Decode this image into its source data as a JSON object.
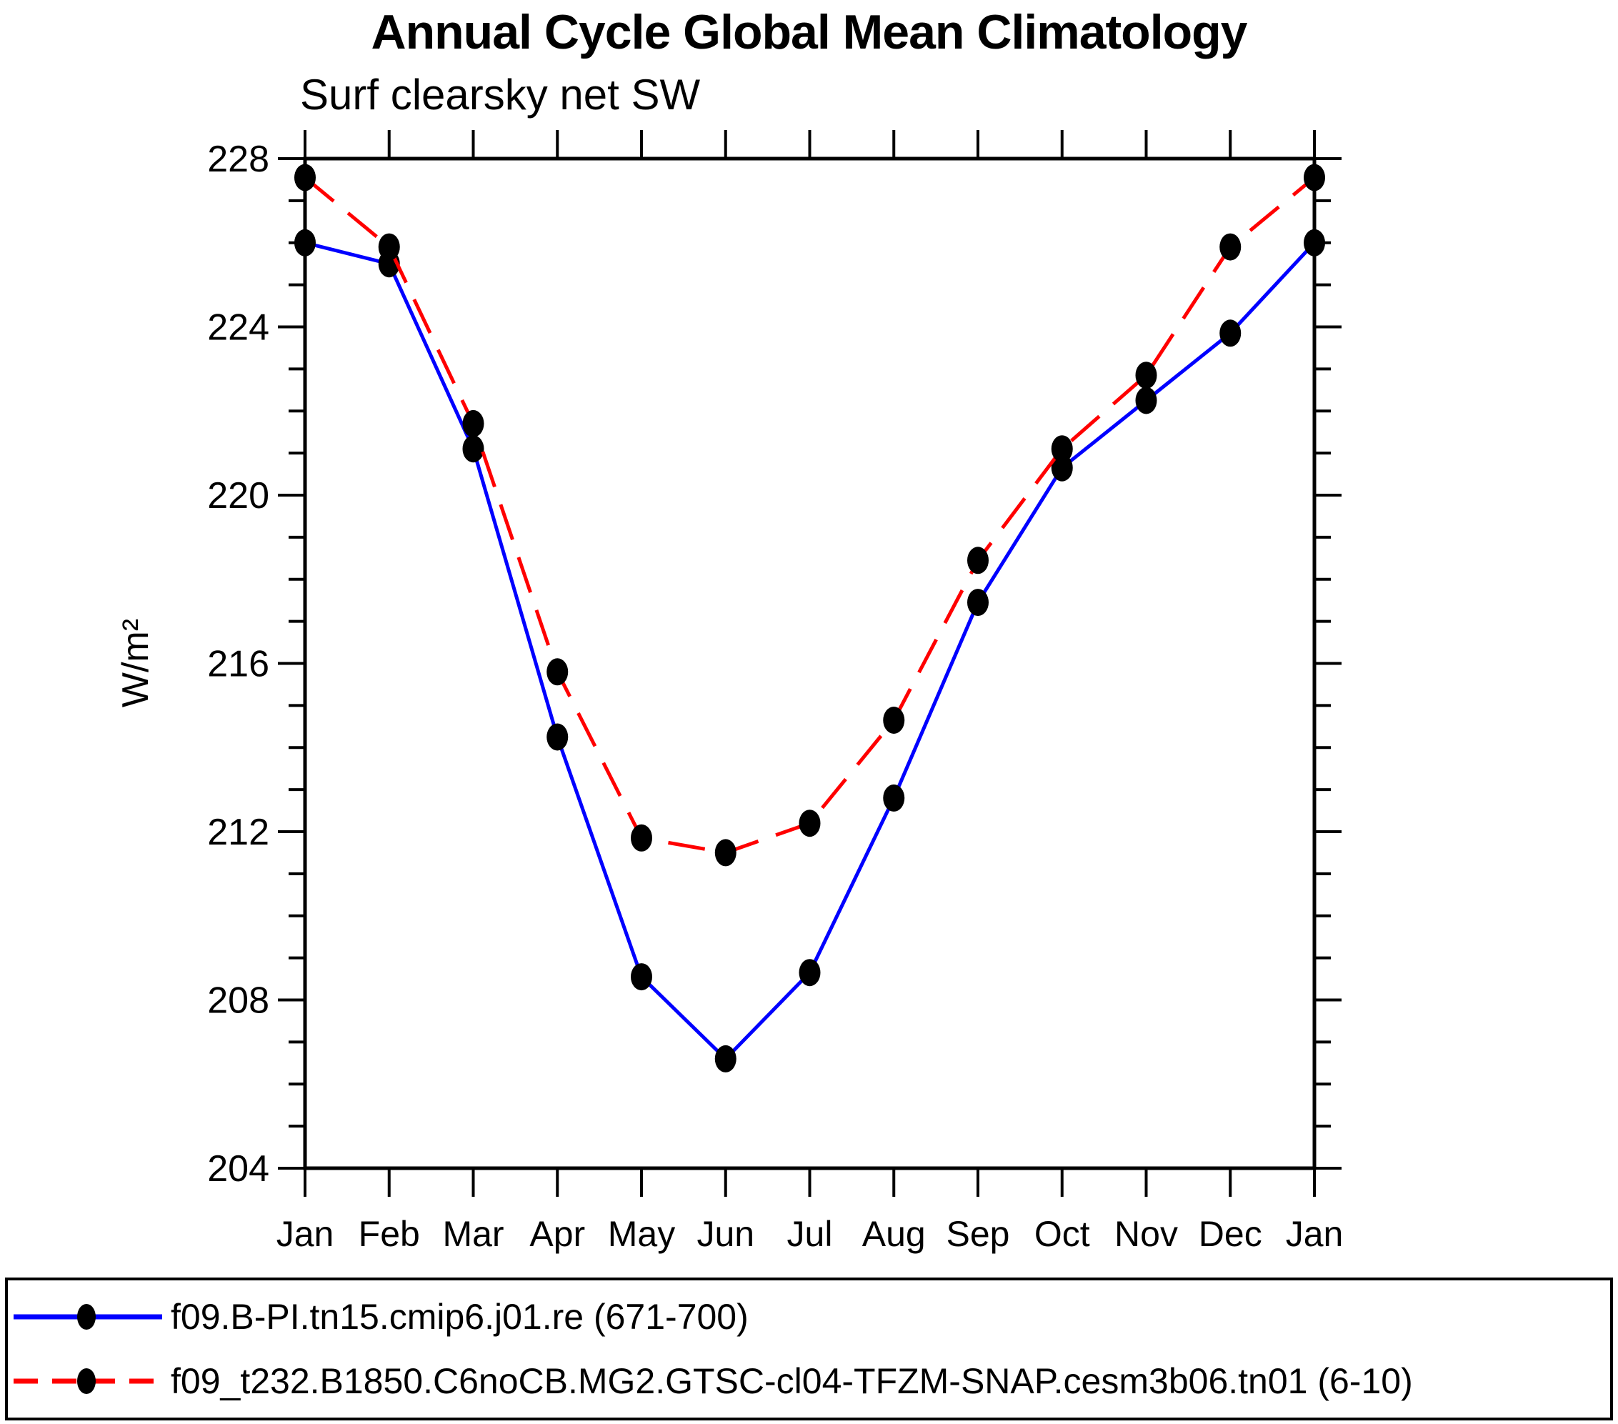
{
  "page": {
    "title": "Annual Cycle Global Mean Climatology",
    "subtitle": "Surf clearsky net SW"
  },
  "chart_data": {
    "type": "line",
    "x_categories": [
      "Jan",
      "Feb",
      "Mar",
      "Apr",
      "May",
      "Jun",
      "Jul",
      "Aug",
      "Sep",
      "Oct",
      "Nov",
      "Dec",
      "Jan"
    ],
    "ylabel": "W/m²",
    "ylim": [
      204,
      228
    ],
    "ytick_major": [
      204,
      208,
      212,
      216,
      220,
      224,
      228
    ],
    "ytick_minor_step": 1,
    "grid": false,
    "legend_position": "bottom",
    "series": [
      {
        "name": "f09.B-PI.tn15.cmip6.j01.re (671-700)",
        "color": "#0000ff",
        "line_style": "solid",
        "marker": "filled-circle",
        "marker_color": "#000000",
        "values": [
          226.0,
          225.5,
          221.1,
          214.25,
          208.55,
          206.6,
          208.65,
          212.8,
          217.45,
          220.65,
          222.25,
          223.85,
          226.0
        ]
      },
      {
        "name": "f09_t232.B1850.C6noCB.MG2.GTSC-cl04-TFZM-SNAP.cesm3b06.tn01 (6-10)",
        "color": "#ff0000",
        "line_style": "dashed",
        "marker": "filled-circle",
        "marker_color": "#000000",
        "values": [
          227.55,
          225.9,
          221.7,
          215.8,
          211.85,
          211.5,
          212.2,
          214.65,
          218.45,
          221.1,
          222.85,
          225.9,
          227.55
        ]
      }
    ]
  }
}
